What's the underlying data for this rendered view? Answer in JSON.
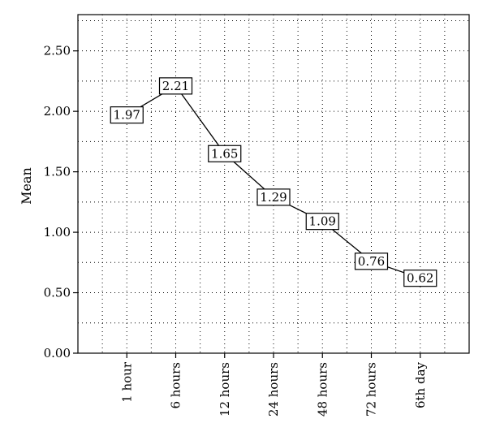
{
  "chart_data": {
    "type": "line",
    "title": "",
    "xlabel": "",
    "ylabel": "Mean",
    "categories": [
      "1 hour",
      "6 hours",
      "12 hours",
      "24 hours",
      "48 hours",
      "72 hours",
      "6th day"
    ],
    "series": [
      {
        "values": [
          1.97,
          2.21,
          1.65,
          1.29,
          1.09,
          0.76,
          0.62
        ]
      }
    ],
    "data_labels": [
      "1.97",
      "2.21",
      "1.65",
      "1.29",
      "1.09",
      "0.76",
      "0.62"
    ],
    "ylim": [
      0,
      2.8
    ],
    "yticks": [
      0,
      0.5,
      1.0,
      1.5,
      2.0,
      2.5
    ],
    "ytick_labels": [
      "0.00",
      "0.50",
      "1.00",
      "1.50",
      "2.00",
      "2.50"
    ],
    "grid": true,
    "legend": "none",
    "colors": {
      "line": "#000000",
      "grid": "#000000",
      "background": "#ffffff"
    }
  }
}
